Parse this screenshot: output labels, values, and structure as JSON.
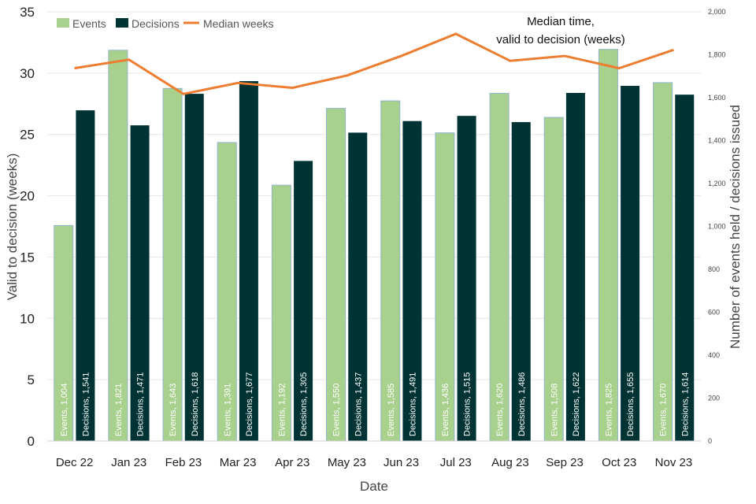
{
  "chart_data": {
    "type": "bar",
    "categories": [
      "Dec 22",
      "Jan 23",
      "Feb 23",
      "Mar 23",
      "Apr 23",
      "May 23",
      "Jun 23",
      "Jul 23",
      "Aug 23",
      "Sep 23",
      "Oct 23",
      "Nov 23"
    ],
    "series": [
      {
        "name": "Events",
        "type": "bar",
        "axis": "right",
        "values": [
          1004,
          1821,
          1643,
          1391,
          1192,
          1550,
          1585,
          1436,
          1620,
          1508,
          1825,
          1670
        ],
        "labels": [
          "Events, 1,004",
          "Events, 1,821",
          "Events, 1,643",
          "Events, 1,391",
          "Events, 1,192",
          "Events, 1,550",
          "Events, 1,585",
          "Events, 1,436",
          "Events, 1,620",
          "Events, 1,508",
          "Events, 1,825",
          "Events, 1,670"
        ],
        "color": "#a9d18e"
      },
      {
        "name": "Decisions",
        "type": "bar",
        "axis": "right",
        "values": [
          1541,
          1471,
          1618,
          1677,
          1305,
          1437,
          1491,
          1515,
          1486,
          1622,
          1655,
          1614
        ],
        "labels": [
          "Decisions, 1,541",
          "Decisions, 1,471",
          "Decisions, 1,618",
          "Decisions, 1,677",
          "Decisions, 1,305",
          "Decisions, 1,437",
          "Decisions, 1,491",
          "Decisions, 1,515",
          "Decisions, 1,486",
          "Decisions, 1,622",
          "Decisions, 1,655",
          "Decisions, 1,614"
        ],
        "color": "#003333"
      },
      {
        "name": "Median weeks",
        "type": "line",
        "axis": "left",
        "values": [
          30.4,
          31.1,
          28.3,
          29.2,
          28.8,
          29.8,
          31.4,
          33.2,
          31,
          31.4,
          30.4,
          31.9
        ],
        "color": "#ed7d31"
      }
    ],
    "xlabel": "Date",
    "ylabel": "Valid to decision (weeks)",
    "y2label": "Number of events held / decisions issued",
    "ylim": [
      0,
      35
    ],
    "yticks": [
      "0",
      "5",
      "10",
      "15",
      "20",
      "25",
      "30",
      "35"
    ],
    "y2lim": [
      0,
      2000
    ],
    "y2ticks": [
      "0",
      "200",
      "400",
      "600",
      "800",
      "1,000",
      "1,200",
      "1,400",
      "1,600",
      "1,800",
      "2,000"
    ],
    "annotation": [
      "Median time,",
      "valid to decision (weeks)"
    ],
    "grid": true,
    "legend_position": "top-left"
  }
}
